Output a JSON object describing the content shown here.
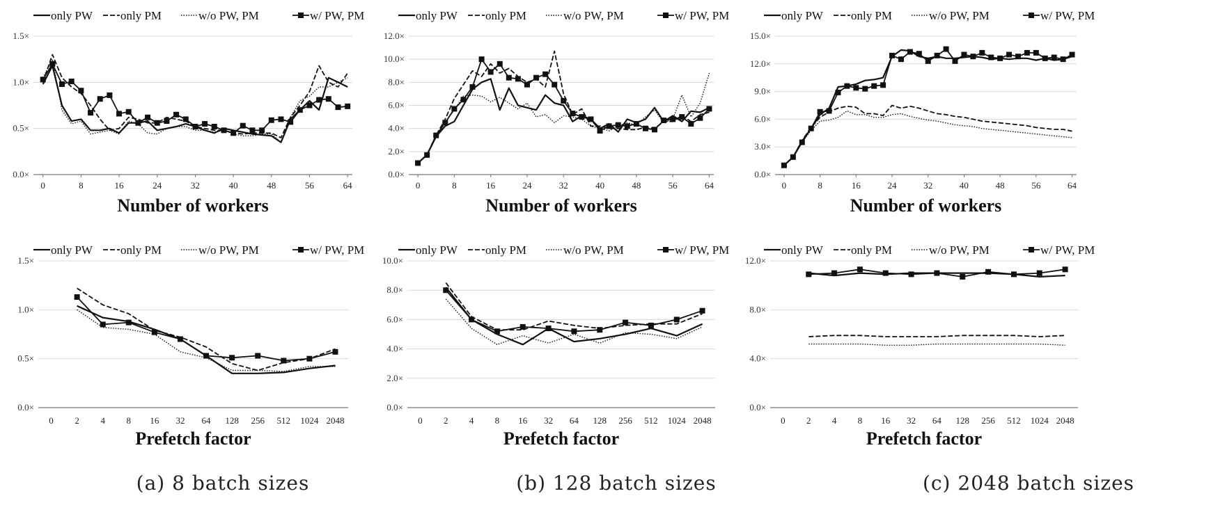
{
  "legend_labels": [
    "only PW",
    "only PM",
    "w/o PW, PM",
    "w/ PW, PM"
  ],
  "captions": [
    "(a) 8 batch sizes",
    "(b) 128 batch sizes",
    "(c) 2048 batch sizes"
  ],
  "chart_data": [
    {
      "type": "line",
      "xlabel": "Number of workers",
      "x_ticks": [
        "0",
        "8",
        "16",
        "24",
        "32",
        "40",
        "48",
        "56",
        "64"
      ],
      "y_ticks": [
        "0.0×",
        "0.5×",
        "1.0×",
        "1.5×"
      ],
      "ylim": [
        0,
        1.5
      ],
      "xlim": [
        -2,
        65
      ],
      "x": [
        0,
        2,
        4,
        6,
        8,
        10,
        12,
        14,
        16,
        18,
        20,
        22,
        24,
        26,
        28,
        30,
        32,
        34,
        36,
        38,
        40,
        42,
        44,
        46,
        48,
        50,
        52,
        54,
        56,
        58,
        60,
        62,
        64
      ],
      "series": [
        {
          "name": "only PW",
          "values": [
            0.98,
            1.18,
            0.75,
            0.58,
            0.6,
            0.48,
            0.48,
            0.5,
            0.45,
            0.56,
            0.56,
            0.58,
            0.48,
            0.5,
            0.52,
            0.55,
            0.52,
            0.48,
            0.45,
            0.5,
            0.48,
            0.46,
            0.44,
            0.43,
            0.42,
            0.35,
            0.6,
            0.7,
            0.8,
            0.7,
            1.05,
            1.0,
            0.95
          ]
        },
        {
          "name": "only PM",
          "values": [
            1.0,
            1.3,
            1.05,
            0.95,
            0.88,
            0.75,
            0.6,
            0.48,
            0.5,
            0.62,
            0.6,
            0.56,
            0.56,
            0.62,
            0.6,
            0.58,
            0.52,
            0.5,
            0.48,
            0.48,
            0.45,
            0.44,
            0.45,
            0.45,
            0.45,
            0.4,
            0.62,
            0.75,
            0.9,
            1.18,
            1.0,
            0.95,
            1.1
          ]
        },
        {
          "name": "w/o PW, PM",
          "values": [
            1.05,
            1.25,
            0.7,
            0.55,
            0.58,
            0.44,
            0.46,
            0.48,
            0.44,
            0.58,
            0.55,
            0.45,
            0.44,
            0.5,
            0.52,
            0.52,
            0.48,
            0.48,
            0.46,
            0.48,
            0.44,
            0.42,
            0.42,
            0.44,
            0.44,
            0.35,
            0.62,
            0.8,
            0.85,
            0.95,
            0.95,
            1.0,
            1.05
          ]
        },
        {
          "name": "w/ PW, PM",
          "values": [
            1.03,
            1.2,
            0.98,
            1.01,
            0.91,
            0.67,
            0.82,
            0.86,
            0.66,
            0.68,
            0.56,
            0.62,
            0.56,
            0.58,
            0.65,
            0.6,
            0.52,
            0.55,
            0.52,
            0.48,
            0.45,
            0.53,
            0.48,
            0.48,
            0.59,
            0.6,
            0.57,
            0.7,
            0.75,
            0.81,
            0.82,
            0.73,
            0.74
          ]
        }
      ]
    },
    {
      "type": "line",
      "xlabel": "Number of workers",
      "x_ticks": [
        "0",
        "8",
        "16",
        "24",
        "32",
        "40",
        "48",
        "56",
        "64"
      ],
      "y_ticks": [
        "0.0×",
        "2.0×",
        "4.0×",
        "6.0×",
        "8.0×",
        "10.0×",
        "12.0×"
      ],
      "ylim": [
        0,
        12
      ],
      "xlim": [
        -2,
        65
      ],
      "x": [
        0,
        2,
        4,
        6,
        8,
        10,
        12,
        14,
        16,
        18,
        20,
        22,
        24,
        26,
        28,
        30,
        32,
        34,
        36,
        38,
        40,
        42,
        44,
        46,
        48,
        50,
        52,
        54,
        56,
        58,
        60,
        62,
        64
      ],
      "series": [
        {
          "name": "only PW",
          "values": [
            1.0,
            1.7,
            3.3,
            4.2,
            4.6,
            6.0,
            7.4,
            8.0,
            8.3,
            5.6,
            7.5,
            6.0,
            5.8,
            5.6,
            6.9,
            6.2,
            6.0,
            4.6,
            5.1,
            4.8,
            4.0,
            4.4,
            3.7,
            4.8,
            4.5,
            4.8,
            5.8,
            4.6,
            5.1,
            4.6,
            5.5,
            5.4,
            5.8
          ]
        },
        {
          "name": "only PM",
          "values": [
            1.0,
            1.7,
            3.4,
            4.8,
            6.6,
            7.8,
            9.0,
            8.5,
            9.6,
            8.8,
            9.2,
            8.5,
            8.0,
            8.3,
            7.6,
            10.7,
            7.0,
            5.2,
            5.7,
            4.2,
            4.2,
            4.0,
            4.0,
            3.9,
            3.9,
            4.1,
            4.0,
            4.6,
            4.6,
            5.1,
            4.6,
            5.2,
            5.4
          ]
        },
        {
          "name": "w/o PW, PM",
          "values": [
            1.0,
            1.8,
            3.2,
            4.5,
            5.6,
            6.8,
            6.9,
            6.8,
            6.3,
            6.7,
            6.2,
            5.7,
            6.2,
            5.0,
            5.2,
            4.5,
            5.1,
            5.0,
            4.8,
            4.2,
            4.0,
            3.8,
            4.2,
            4.5,
            4.3,
            5.0,
            5.6,
            4.5,
            4.8,
            6.9,
            5.0,
            6.2,
            8.8
          ]
        },
        {
          "name": "w/ PW, PM",
          "values": [
            1.0,
            1.7,
            3.4,
            4.5,
            5.7,
            6.5,
            7.6,
            10.0,
            8.9,
            9.6,
            8.4,
            8.3,
            7.8,
            8.4,
            8.7,
            7.8,
            6.4,
            5.3,
            5.0,
            4.8,
            3.8,
            4.2,
            4.3,
            4.2,
            4.4,
            4.0,
            3.9,
            4.7,
            4.8,
            5.0,
            4.4,
            4.9,
            5.7
          ]
        }
      ]
    },
    {
      "type": "line",
      "xlabel": "Number of workers",
      "x_ticks": [
        "0",
        "8",
        "16",
        "24",
        "32",
        "40",
        "48",
        "56",
        "64"
      ],
      "y_ticks": [
        "0.0×",
        "3.0×",
        "6.0×",
        "9.0×",
        "12.0×",
        "15.0×"
      ],
      "ylim": [
        0,
        15
      ],
      "xlim": [
        -2,
        65
      ],
      "x": [
        0,
        2,
        4,
        6,
        8,
        10,
        12,
        14,
        16,
        18,
        20,
        22,
        24,
        26,
        28,
        30,
        32,
        34,
        36,
        38,
        40,
        42,
        44,
        46,
        48,
        50,
        52,
        54,
        56,
        58,
        60,
        62,
        64
      ],
      "series": [
        {
          "name": "only PW",
          "values": [
            1.0,
            1.9,
            3.6,
            5.0,
            6.5,
            7.2,
            9.5,
            9.6,
            9.8,
            10.2,
            10.3,
            10.5,
            12.8,
            13.5,
            13.4,
            12.8,
            12.6,
            12.8,
            12.6,
            12.6,
            12.7,
            12.8,
            12.7,
            12.5,
            12.6,
            12.5,
            12.6,
            12.6,
            12.4,
            12.6,
            12.4,
            12.5,
            12.8
          ]
        },
        {
          "name": "only PM",
          "values": [
            1.0,
            1.9,
            3.7,
            5.1,
            6.2,
            6.8,
            7.2,
            7.4,
            7.3,
            6.6,
            6.6,
            6.4,
            7.5,
            7.2,
            7.4,
            7.2,
            6.9,
            6.6,
            6.5,
            6.3,
            6.2,
            6.0,
            5.8,
            5.7,
            5.6,
            5.5,
            5.4,
            5.3,
            5.1,
            5.0,
            4.9,
            4.9,
            4.7
          ]
        },
        {
          "name": "w/o PW, PM",
          "values": [
            1.0,
            1.8,
            3.5,
            4.8,
            5.8,
            5.9,
            6.2,
            6.9,
            6.5,
            6.5,
            6.2,
            6.2,
            6.5,
            6.6,
            6.3,
            6.1,
            5.9,
            5.8,
            5.6,
            5.4,
            5.3,
            5.2,
            5.0,
            4.9,
            4.8,
            4.7,
            4.6,
            4.5,
            4.4,
            4.3,
            4.2,
            4.1,
            4.0
          ]
        },
        {
          "name": "w/ PW, PM",
          "values": [
            1.0,
            1.9,
            3.5,
            5.0,
            6.8,
            6.9,
            8.9,
            9.6,
            9.4,
            9.3,
            9.6,
            9.7,
            12.9,
            12.5,
            13.3,
            13.1,
            12.3,
            12.9,
            13.6,
            12.3,
            13.0,
            12.8,
            13.2,
            12.7,
            12.6,
            13.0,
            12.8,
            13.2,
            13.2,
            12.6,
            12.7,
            12.5,
            13.0
          ]
        }
      ]
    },
    {
      "type": "line",
      "xlabel": "Prefetch factor",
      "categories": [
        "0",
        "2",
        "4",
        "8",
        "16",
        "32",
        "64",
        "128",
        "256",
        "512",
        "1024",
        "2048"
      ],
      "y_ticks": [
        "0.0×",
        "0.5×",
        "1.0×",
        "1.5×"
      ],
      "ylim": [
        0,
        1.5
      ],
      "series": [
        {
          "name": "only PW",
          "values": [
            null,
            1.04,
            0.92,
            0.88,
            0.8,
            0.7,
            0.53,
            0.35,
            0.35,
            0.36,
            0.4,
            0.43
          ]
        },
        {
          "name": "only PM",
          "values": [
            null,
            1.22,
            1.05,
            0.96,
            0.79,
            0.72,
            0.62,
            0.45,
            0.38,
            0.46,
            0.5,
            0.6
          ]
        },
        {
          "name": "w/o PW, PM",
          "values": [
            null,
            1.0,
            0.82,
            0.8,
            0.75,
            0.57,
            0.51,
            0.38,
            0.38,
            0.37,
            0.42,
            0.42
          ]
        },
        {
          "name": "w/ PW, PM",
          "values": [
            null,
            1.13,
            0.85,
            0.87,
            0.77,
            0.7,
            0.53,
            0.51,
            0.53,
            0.48,
            0.5,
            0.57
          ]
        }
      ]
    },
    {
      "type": "line",
      "xlabel": "Prefetch factor",
      "categories": [
        "0",
        "2",
        "4",
        "8",
        "16",
        "32",
        "64",
        "128",
        "256",
        "512",
        "1024",
        "2048"
      ],
      "y_ticks": [
        "0.0×",
        "2.0×",
        "4.0×",
        "6.0×",
        "8.0×",
        "10.0×"
      ],
      "ylim": [
        0,
        10
      ],
      "series": [
        {
          "name": "only PW",
          "values": [
            null,
            8.2,
            6.0,
            5.0,
            4.3,
            5.4,
            4.5,
            4.7,
            5.0,
            5.4,
            4.9,
            5.7
          ]
        },
        {
          "name": "only PM",
          "values": [
            null,
            8.5,
            6.2,
            5.3,
            5.3,
            5.9,
            5.6,
            5.4,
            5.6,
            5.7,
            5.7,
            6.4
          ]
        },
        {
          "name": "w/o PW, PM",
          "values": [
            null,
            7.4,
            5.4,
            4.3,
            4.9,
            4.4,
            5.0,
            4.4,
            5.1,
            5.0,
            4.7,
            5.5
          ]
        },
        {
          "name": "w/ PW, PM",
          "values": [
            null,
            8.0,
            6.0,
            5.2,
            5.5,
            5.4,
            5.2,
            5.3,
            5.8,
            5.6,
            6.0,
            6.6
          ]
        }
      ]
    },
    {
      "type": "line",
      "xlabel": "Prefetch factor",
      "categories": [
        "0",
        "2",
        "4",
        "8",
        "16",
        "32",
        "64",
        "128",
        "256",
        "512",
        "1024",
        "2048"
      ],
      "y_ticks": [
        "0.0×",
        "4.0×",
        "8.0×",
        "12.0×"
      ],
      "ylim": [
        0,
        12
      ],
      "series": [
        {
          "name": "only PW",
          "values": [
            null,
            11.0,
            10.8,
            11.0,
            10.9,
            11.0,
            11.0,
            11.0,
            11.0,
            10.9,
            10.7,
            10.8
          ]
        },
        {
          "name": "only PM",
          "values": [
            null,
            5.8,
            5.9,
            5.9,
            5.8,
            5.8,
            5.8,
            5.9,
            5.9,
            5.9,
            5.8,
            5.9
          ]
        },
        {
          "name": "w/o PW, PM",
          "values": [
            null,
            5.2,
            5.2,
            5.2,
            5.1,
            5.1,
            5.2,
            5.2,
            5.2,
            5.2,
            5.2,
            5.1
          ]
        },
        {
          "name": "w/ PW, PM",
          "values": [
            null,
            10.9,
            11.0,
            11.3,
            11.0,
            10.9,
            11.0,
            10.7,
            11.1,
            10.9,
            11.0,
            11.3
          ]
        }
      ]
    }
  ]
}
